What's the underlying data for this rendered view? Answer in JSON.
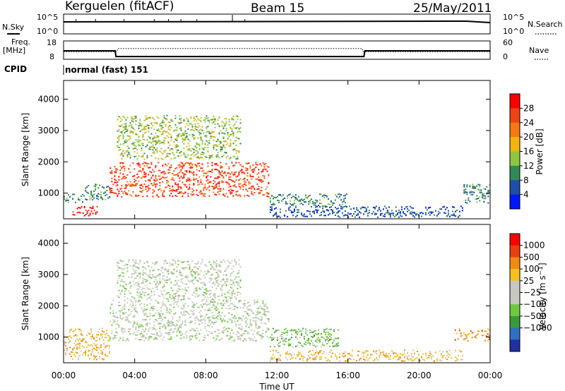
{
  "header": {
    "station": "Kerguelen (fitACF)",
    "beam": "Beam 15",
    "date": "25/May/2011"
  },
  "nsky_panel": {
    "left_label": "N.Sky",
    "left_ticks": [
      "10^5",
      "10^0"
    ],
    "right_label": "N.Search",
    "right_ticks": [
      "10^5",
      "10^0"
    ]
  },
  "freq_panel": {
    "left_label_1": "Freq.",
    "left_label_2": "[MHz]",
    "left_ticks": [
      "18",
      "8"
    ],
    "right_label": "Nave",
    "right_ticks": [
      "60",
      "0"
    ],
    "freq_mhz": [
      {
        "t": 0,
        "v": 12.6
      },
      {
        "t": 2.9,
        "v": 12.6
      },
      {
        "t": 2.95,
        "v": 9.5
      },
      {
        "t": 16.9,
        "v": 9.5
      },
      {
        "t": 16.95,
        "v": 12.6
      },
      {
        "t": 24,
        "v": 12.6
      }
    ],
    "nave": [
      {
        "t": 0,
        "v": 25
      },
      {
        "t": 3.0,
        "v": 25
      },
      {
        "t": 3.05,
        "v": 35
      },
      {
        "t": 16.8,
        "v": 35
      },
      {
        "t": 16.85,
        "v": 25
      },
      {
        "t": 24,
        "v": 25
      }
    ]
  },
  "cpid": {
    "label": "CPID",
    "mode": "normal (fast) 151"
  },
  "colors": {
    "power_scale": [
      "#0018ff",
      "#1f4ea6",
      "#2f8a55",
      "#8dc63f",
      "#f3b40f",
      "#f57a12",
      "#f04315",
      "#ff0000"
    ],
    "velocity_scale": [
      "#2030a0",
      "#3070c0",
      "#3a9a3a",
      "#70c840",
      "#c8c8c0",
      "#c8c8c0",
      "#f5c020",
      "#f08a10",
      "#e84010",
      "#ff0000"
    ]
  },
  "chart_data": [
    {
      "type": "heatmap",
      "name": "power",
      "xlabel": "",
      "ylabel": "Slant Range [km]",
      "x_range_hours": [
        0,
        24
      ],
      "ylim": [
        180,
        4600
      ],
      "y_ticks": [
        "1000",
        "2000",
        "3000",
        "4000"
      ],
      "colorbar": {
        "label": "Power [dB]",
        "ticks": [
          "4",
          "8",
          "12",
          "16",
          "20",
          "24",
          "28"
        ],
        "range": [
          0,
          32
        ]
      },
      "echo_regions": [
        {
          "t0": 0.0,
          "t1": 1.2,
          "r0": 700,
          "r1": 1000,
          "level": 2
        },
        {
          "t0": 0.5,
          "t1": 2.0,
          "r0": 300,
          "r1": 600,
          "level": 7
        },
        {
          "t0": 1.2,
          "t1": 2.6,
          "r0": 800,
          "r1": 1300,
          "level": 2
        },
        {
          "t0": 2.6,
          "t1": 11.6,
          "r0": 900,
          "r1": 2000,
          "level": 6
        },
        {
          "t0": 3.0,
          "t1": 10.0,
          "r0": 2100,
          "r1": 3500,
          "level": 3
        },
        {
          "t0": 11.6,
          "t1": 16.0,
          "r0": 600,
          "r1": 1000,
          "level": 2
        },
        {
          "t0": 11.6,
          "t1": 22.5,
          "r0": 250,
          "r1": 600,
          "level": 1
        },
        {
          "t0": 22.5,
          "t1": 24.0,
          "r0": 700,
          "r1": 1300,
          "level": 2
        }
      ]
    },
    {
      "type": "heatmap",
      "name": "velocity",
      "xlabel": "Time UT",
      "ylabel": "Slant Range [km]",
      "x_range_hours": [
        0,
        24
      ],
      "ylim": [
        180,
        4600
      ],
      "x_ticks": [
        "00:00",
        "04:00",
        "08:00",
        "12:00",
        "16:00",
        "20:00",
        "00:00"
      ],
      "y_ticks": [
        "1000",
        "2000",
        "3000",
        "4000"
      ],
      "colorbar": {
        "label": "Velocity [m s^-1]",
        "ticks": [
          "1000",
          "500",
          "100",
          "25",
          "−25",
          "−100",
          "−500",
          "−1000"
        ]
      },
      "echo_regions": [
        {
          "t0": 0.0,
          "t1": 2.6,
          "r0": 300,
          "r1": 1300,
          "level": 6
        },
        {
          "t0": 2.6,
          "t1": 11.6,
          "r0": 900,
          "r1": 2200,
          "level": 4
        },
        {
          "t0": 3.0,
          "t1": 10.0,
          "r0": 2200,
          "r1": 3500,
          "level": 4
        },
        {
          "t0": 11.6,
          "t1": 15.5,
          "r0": 700,
          "r1": 1300,
          "level": 3
        },
        {
          "t0": 11.6,
          "t1": 22.5,
          "r0": 250,
          "r1": 600,
          "level": 6
        },
        {
          "t0": 22.0,
          "t1": 24.0,
          "r0": 900,
          "r1": 1300,
          "level": 7
        }
      ]
    }
  ]
}
